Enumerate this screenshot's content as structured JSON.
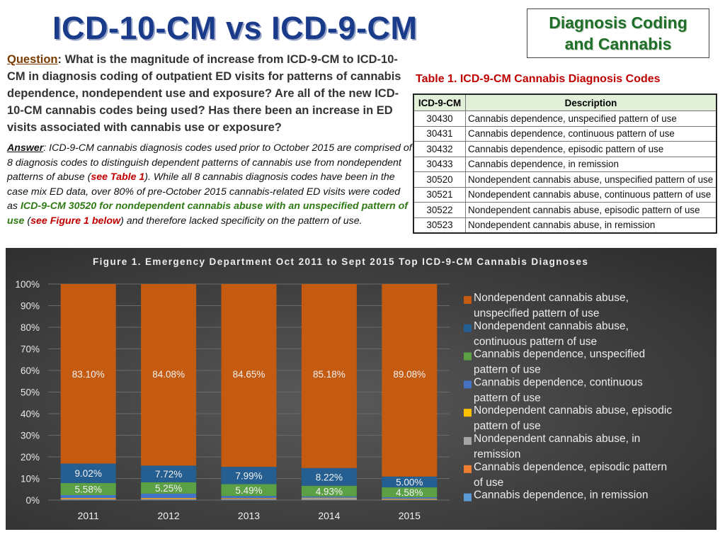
{
  "title": "ICD-10-CM vs ICD-9-CM",
  "badge": {
    "line1": "Diagnosis Coding",
    "line2": "and Cannabis"
  },
  "question": {
    "lead": "Question",
    "text": ": What is the magnitude of increase from ICD-9-CM to ICD-10-CM in diagnosis coding of outpatient ED visits for patterns of cannabis dependence, nondependent use and exposure?  Are all of the new ICD-10-CM cannabis codes being used? Has there been an increase in ED visits associated with cannabis use or exposure?"
  },
  "answer": {
    "lead": "Answer",
    "part1": ": ICD-9-CM cannabis diagnosis codes used prior to October 2015 are comprised of 8 diagnosis codes to distinguish dependent patterns of cannabis use from nondependent patterns of abuse (",
    "ref1": "see Table 1",
    "part2": "). While all 8 cannabis diagnosis codes have been in the case mix ED data, over 80% of pre-October 2015 cannabis-related ED visits were coded as ",
    "highlight": "ICD-9-CM 30520 for nondependent cannabis abuse with an unspecified pattern of use",
    "part3": " (",
    "ref2": "see Figure 1 below",
    "part4": ") and therefore lacked specificity on the pattern of use."
  },
  "table": {
    "title": "Table 1. ICD-9-CM Cannabis Diagnosis Codes",
    "headers": [
      "ICD-9-CM",
      "Description"
    ],
    "rows": [
      [
        "30430",
        "Cannabis dependence, unspecified pattern of use"
      ],
      [
        "30431",
        "Cannabis dependence, continuous pattern of use"
      ],
      [
        "30432",
        "Cannabis dependence, episodic pattern of use"
      ],
      [
        "30433",
        "Cannabis dependence, in remission"
      ],
      [
        "30520",
        "Nondependent cannabis abuse, unspecified pattern of use"
      ],
      [
        "30521",
        "Nondependent cannabis abuse, continuous pattern of use"
      ],
      [
        "30522",
        "Nondependent cannabis abuse, episodic pattern of use"
      ],
      [
        "30523",
        "Nondependent cannabis abuse, in remission"
      ]
    ]
  },
  "chart_data": {
    "type": "bar",
    "stacked": true,
    "percent_stacked": true,
    "title": "Figure 1. Emergency Department Oct 2011 to Sept 2015 Top ICD-9-CM Cannabis Diagnoses",
    "categories": [
      "2011",
      "2012",
      "2013",
      "2014",
      "2015"
    ],
    "y_ticks": [
      "0%",
      "10%",
      "20%",
      "30%",
      "40%",
      "50%",
      "60%",
      "70%",
      "80%",
      "90%",
      "100%"
    ],
    "ylim": [
      0,
      100
    ],
    "grid": true,
    "legend_position": "right",
    "series": [
      {
        "name": "Nondependent cannabis abuse, unspecified pattern of use",
        "color": "#c55a11",
        "values": [
          83.1,
          84.08,
          84.65,
          85.18,
          89.08
        ],
        "labels": [
          "83.10%",
          "84.08%",
          "84.65%",
          "85.18%",
          "89.08%"
        ]
      },
      {
        "name": "Nondependent cannabis abuse, continuous pattern of use",
        "color": "#255e91",
        "values": [
          9.02,
          7.72,
          7.99,
          8.22,
          5.0
        ],
        "labels": [
          "9.02%",
          "7.72%",
          "7.99%",
          "8.22%",
          "5.00%"
        ]
      },
      {
        "name": "Cannabis dependence, unspecified pattern of use",
        "color": "#5ca045",
        "values": [
          5.58,
          5.25,
          5.49,
          4.93,
          4.58
        ],
        "labels": [
          "5.58%",
          "5.25%",
          "5.49%",
          "4.93%",
          "4.58%"
        ]
      },
      {
        "name": "Cannabis dependence, continuous pattern of use",
        "color": "#4472c4",
        "values": [
          1.3,
          2.0,
          1.0,
          0.6,
          0.6
        ],
        "labels": [
          "",
          "",
          "",
          "",
          ""
        ]
      },
      {
        "name": "Nondependent cannabis abuse, episodic pattern of use",
        "color": "#ffc000",
        "values": [
          0.2,
          0.2,
          0.2,
          0.2,
          0.2
        ],
        "labels": [
          "",
          "",
          "",
          "",
          ""
        ]
      },
      {
        "name": "Nondependent cannabis abuse, in remission",
        "color": "#a5a5a5",
        "values": [
          0.1,
          0.1,
          0.1,
          0.6,
          0.1
        ],
        "labels": [
          "",
          "",
          "",
          "",
          ""
        ]
      },
      {
        "name": "Cannabis dependence, episodic pattern of use",
        "color": "#ed7d31",
        "values": [
          0.4,
          0.4,
          0.3,
          0.1,
          0.2
        ],
        "labels": [
          "",
          "",
          "",
          "",
          ""
        ]
      },
      {
        "name": "Cannabis dependence, in remission",
        "color": "#5b9bd5",
        "values": [
          0.3,
          0.3,
          0.3,
          0.2,
          0.2
        ],
        "labels": [
          "",
          "",
          "",
          "",
          ""
        ]
      }
    ]
  }
}
